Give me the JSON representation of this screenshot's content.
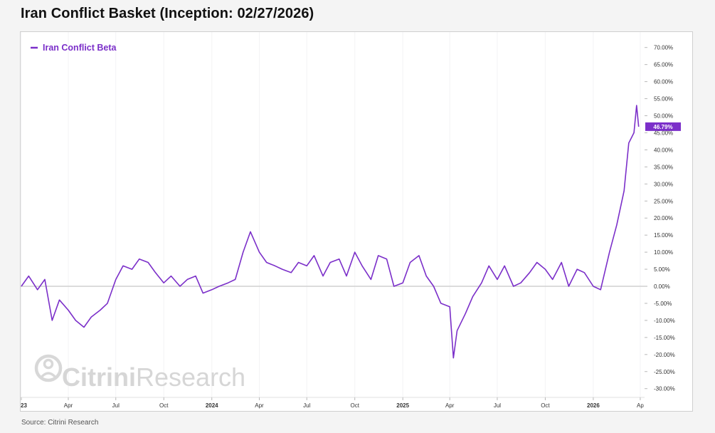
{
  "title": "Iran Conflict Basket (Inception: 02/27/2026)",
  "source": "Source: Citrini Research",
  "watermark": {
    "brand_bold": "Citrini",
    "brand_regular": "Research"
  },
  "colors": {
    "line": "#7b2fc9",
    "zero_line": "#c8c8c8",
    "grid": "#f3f3f5",
    "text": "#333333"
  },
  "chart_data": {
    "type": "line",
    "title": "Iran Conflict Basket (Inception: 02/27/2026)",
    "ylim": [
      -32,
      72
    ],
    "y_ticks": [
      70,
      65,
      60,
      55,
      50,
      45,
      40,
      35,
      30,
      25,
      20,
      15,
      10,
      5,
      0,
      -5,
      -10,
      -15,
      -20,
      -25,
      -30
    ],
    "y_tick_labels": [
      "70.00%",
      "65.00%",
      "60.00%",
      "55.00%",
      "50.00%",
      "45.00%",
      "40.00%",
      "35.00%",
      "30.00%",
      "25.00%",
      "20.00%",
      "15.00%",
      "10.00%",
      "5.00%",
      "0.00%",
      "-5.00%",
      "-10.00%",
      "-15.00%",
      "-20.00%",
      "-25.00%",
      "-30.00%"
    ],
    "x_ticks": [
      {
        "date": "2023-01",
        "label": "23"
      },
      {
        "date": "2023-04",
        "label": "Apr"
      },
      {
        "date": "2023-07",
        "label": "Jul"
      },
      {
        "date": "2023-10",
        "label": "Oct"
      },
      {
        "date": "2024-01",
        "label": "2024"
      },
      {
        "date": "2024-04",
        "label": "Apr"
      },
      {
        "date": "2024-07",
        "label": "Jul"
      },
      {
        "date": "2024-10",
        "label": "Oct"
      },
      {
        "date": "2025-01",
        "label": "2025"
      },
      {
        "date": "2025-04",
        "label": "Apr"
      },
      {
        "date": "2025-07",
        "label": "Jul"
      },
      {
        "date": "2025-10",
        "label": "Oct"
      },
      {
        "date": "2026-01",
        "label": "2026"
      },
      {
        "date": "2026-04",
        "label": "Ap"
      }
    ],
    "series": [
      {
        "name": "Iran Conflict Beta",
        "last_value_label": "46.79%",
        "x": [
          "2023-01-01",
          "2023-01-15",
          "2023-02-01",
          "2023-02-15",
          "2023-03-01",
          "2023-03-15",
          "2023-04-01",
          "2023-04-15",
          "2023-05-01",
          "2023-05-15",
          "2023-06-01",
          "2023-06-15",
          "2023-07-01",
          "2023-07-15",
          "2023-08-01",
          "2023-08-15",
          "2023-09-01",
          "2023-09-15",
          "2023-10-01",
          "2023-10-15",
          "2023-11-01",
          "2023-11-15",
          "2023-12-01",
          "2023-12-15",
          "2024-01-01",
          "2024-01-15",
          "2024-02-01",
          "2024-02-15",
          "2024-03-01",
          "2024-03-15",
          "2024-04-01",
          "2024-04-15",
          "2024-05-01",
          "2024-05-15",
          "2024-06-01",
          "2024-06-15",
          "2024-07-01",
          "2024-07-15",
          "2024-08-01",
          "2024-08-15",
          "2024-09-01",
          "2024-09-15",
          "2024-10-01",
          "2024-10-15",
          "2024-11-01",
          "2024-11-15",
          "2024-12-01",
          "2024-12-15",
          "2025-01-01",
          "2025-01-15",
          "2025-02-01",
          "2025-02-15",
          "2025-03-01",
          "2025-03-15",
          "2025-04-01",
          "2025-04-08",
          "2025-04-15",
          "2025-05-01",
          "2025-05-15",
          "2025-06-01",
          "2025-06-15",
          "2025-07-01",
          "2025-07-15",
          "2025-08-01",
          "2025-08-15",
          "2025-09-01",
          "2025-09-15",
          "2025-10-01",
          "2025-10-15",
          "2025-11-01",
          "2025-11-15",
          "2025-12-01",
          "2025-12-15",
          "2026-01-01",
          "2026-01-15",
          "2026-02-01",
          "2026-02-15",
          "2026-03-01",
          "2026-03-10",
          "2026-03-20",
          "2026-03-25",
          "2026-03-29"
        ],
        "y": [
          0,
          3,
          -1,
          2,
          -10,
          -4,
          -7,
          -10,
          -12,
          -9,
          -7,
          -5,
          2,
          6,
          5,
          8,
          7,
          4,
          1,
          3,
          0,
          2,
          3,
          -2,
          -1,
          0,
          1,
          2,
          10,
          16,
          10,
          7,
          6,
          5,
          4,
          7,
          6,
          9,
          3,
          7,
          8,
          3,
          10,
          6,
          2,
          9,
          8,
          0,
          1,
          7,
          9,
          3,
          0,
          -5,
          -6,
          -21,
          -13,
          -8,
          -3,
          1,
          6,
          2,
          6,
          0,
          1,
          4,
          7,
          5,
          2,
          7,
          0,
          5,
          4,
          0,
          -1,
          10,
          18,
          28,
          42,
          45,
          53,
          46.79
        ]
      }
    ]
  }
}
